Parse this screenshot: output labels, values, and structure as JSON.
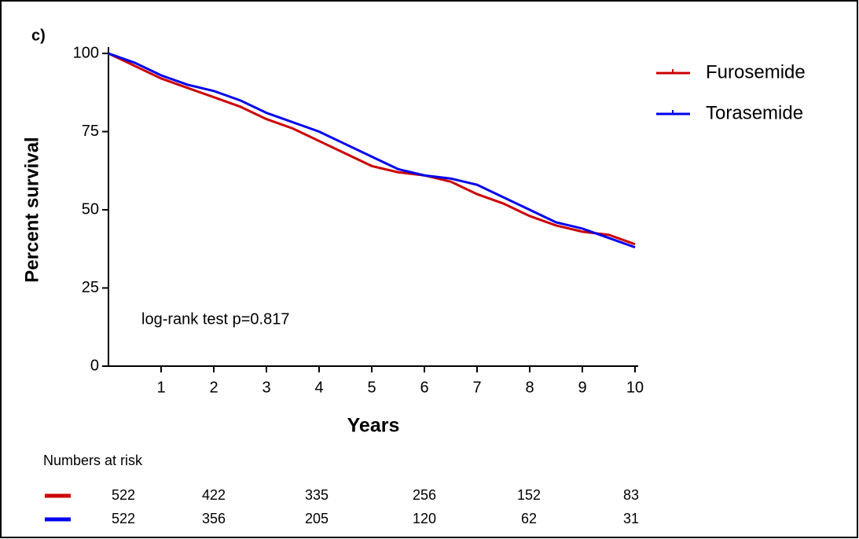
{
  "chart_data": {
    "type": "line",
    "panel_label": "c)",
    "ylabel": "Percent survival",
    "xlabel": "Years",
    "annotation": "log-rank test p=0.817",
    "x": [
      0,
      0.5,
      1,
      1.5,
      2,
      2.5,
      3,
      3.5,
      4,
      4.5,
      5,
      5.5,
      6,
      6.5,
      7,
      7.5,
      8,
      8.5,
      9,
      9.5,
      10
    ],
    "series": [
      {
        "name": "Furosemide",
        "color": "#cc0000",
        "values": [
          100,
          96,
          92,
          89,
          86,
          83,
          79,
          76,
          72,
          68,
          64,
          62,
          61,
          59,
          55,
          52,
          48,
          45,
          43,
          42,
          39
        ]
      },
      {
        "name": "Torasemide",
        "color": "#0000ee",
        "values": [
          100,
          97,
          93,
          90,
          88,
          85,
          81,
          78,
          75,
          71,
          67,
          63,
          61,
          60,
          58,
          54,
          50,
          46,
          44,
          41,
          38
        ]
      }
    ],
    "xlim": [
      0,
      10
    ],
    "xticks": [
      1,
      2,
      3,
      4,
      5,
      6,
      7,
      8,
      9,
      10
    ],
    "ylim": [
      0,
      100
    ],
    "yticks": [
      0,
      25,
      50,
      75,
      100
    ],
    "legend": "top-right",
    "risk_table": {
      "title": "Numbers at risk",
      "rows": [
        {
          "color": "#cc0000",
          "values": [
            522,
            422,
            335,
            256,
            152,
            83
          ]
        },
        {
          "color": "#0000ee",
          "values": [
            522,
            356,
            205,
            120,
            62,
            31
          ]
        }
      ]
    }
  }
}
